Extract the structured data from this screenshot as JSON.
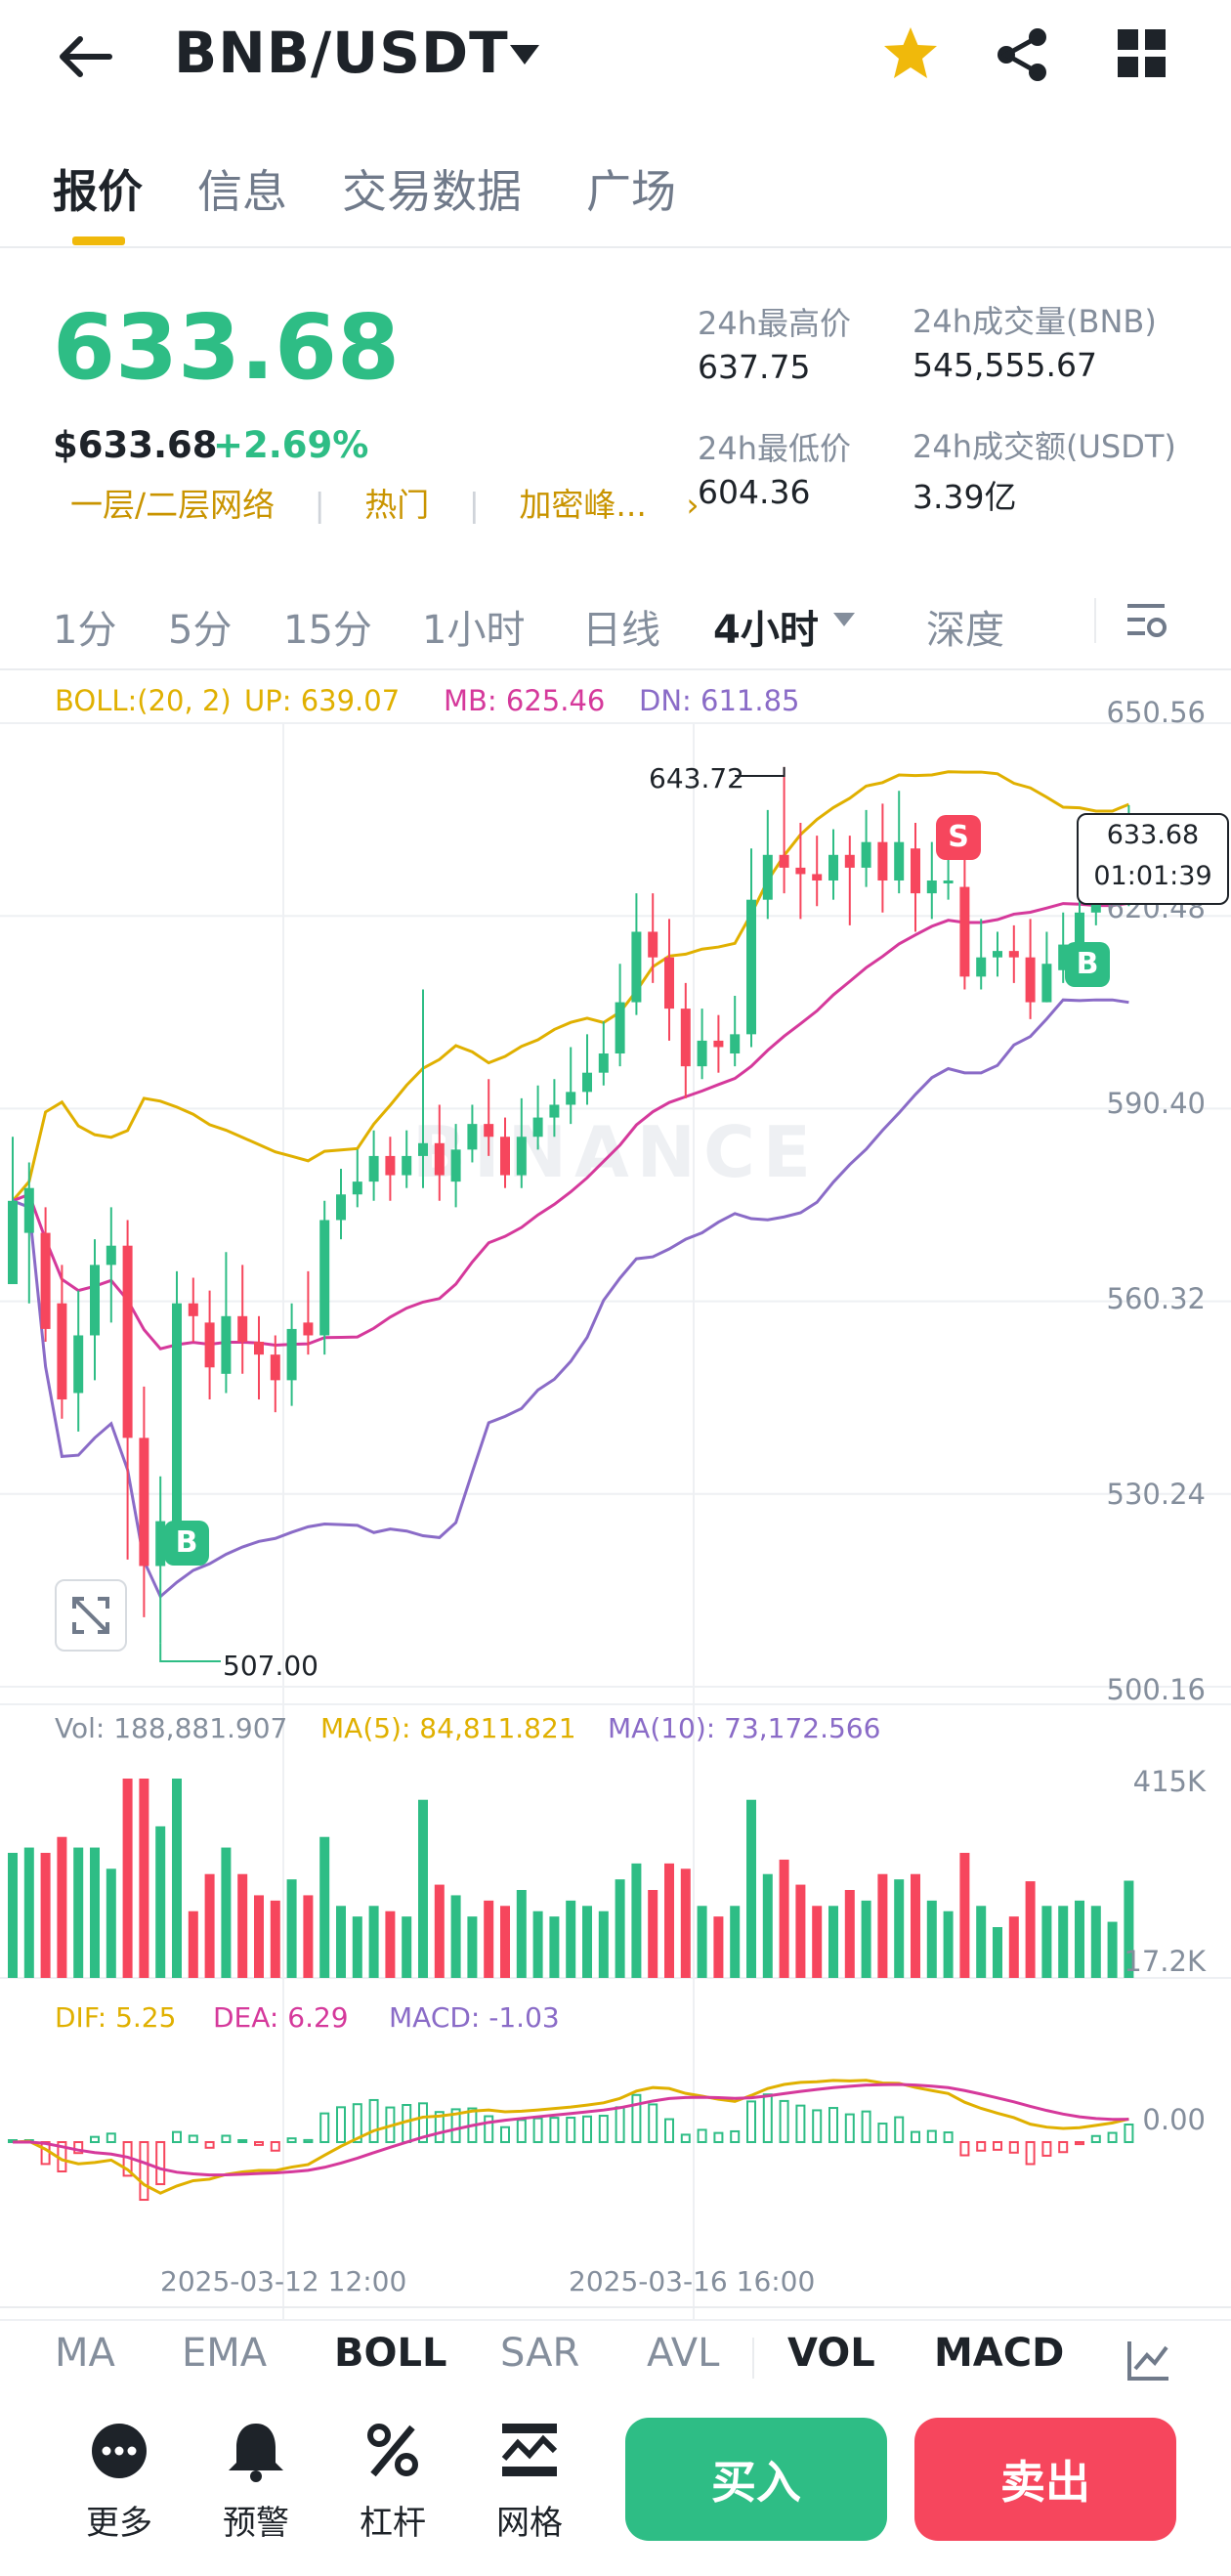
{
  "header": {
    "pair": "BNB/USDT",
    "icons": [
      "back-arrow-icon",
      "caret-down-icon",
      "star-icon",
      "share-icon",
      "grid-icon"
    ],
    "colors": {
      "star": "#f0b90b",
      "up": "#2ebd85",
      "down": "#f6465d",
      "accent": "#f0b90b"
    }
  },
  "tabs": [
    {
      "label": "报价",
      "active": true
    },
    {
      "label": "信息",
      "active": false
    },
    {
      "label": "交易数据",
      "active": false
    },
    {
      "label": "广场",
      "active": false
    }
  ],
  "price": {
    "last": "633.68",
    "usd": "$633.68",
    "change": "+2.69%",
    "tags": [
      "一层/二层网络",
      "热门",
      "加密峰..."
    ]
  },
  "stats": {
    "high_label": "24h最高价",
    "high": "637.75",
    "low_label": "24h最低价",
    "low": "604.36",
    "vol_label": "24h成交量(BNB)",
    "vol": "545,555.67",
    "amt_label": "24h成交额(USDT)",
    "amt": "3.39亿"
  },
  "timeframes": [
    {
      "label": "1分",
      "active": false
    },
    {
      "label": "5分",
      "active": false
    },
    {
      "label": "15分",
      "active": false
    },
    {
      "label": "1小时",
      "active": false
    },
    {
      "label": "日线",
      "active": false
    },
    {
      "label": "4小时",
      "active": true
    },
    {
      "label": "深度",
      "active": false
    }
  ],
  "boll": {
    "label": "BOLL:(20, 2)",
    "up": "UP: 639.07",
    "mb": "MB: 625.46",
    "dn": "DN: 611.85"
  },
  "price_axis": [
    "650.56",
    "620.48",
    "590.40",
    "560.32",
    "530.24",
    "500.16"
  ],
  "annotations": {
    "high": "643.72",
    "low": "507.00",
    "current": "633.68",
    "countdown": "01:01:39",
    "sell_marker": "S",
    "buy_marker": "B"
  },
  "watermark": "BINANCE",
  "volume": {
    "vol": "Vol: 188,881.907",
    "ma5": "MA(5): 84,811.821",
    "ma10": "MA(10): 73,172.566",
    "axis_top": "415K",
    "axis_bottom": "17.2K"
  },
  "macd": {
    "dif": "DIF: 5.25",
    "dea": "DEA: 6.29",
    "macd": "MACD: -1.03",
    "zero": "0.00"
  },
  "time_axis": [
    "2025-03-12 12:00",
    "2025-03-16 16:00"
  ],
  "indicators": [
    {
      "label": "MA",
      "active": false
    },
    {
      "label": "EMA",
      "active": false
    },
    {
      "label": "BOLL",
      "active": true
    },
    {
      "label": "SAR",
      "active": false
    },
    {
      "label": "AVL",
      "active": false
    },
    {
      "label": "VOL",
      "active": true
    },
    {
      "label": "MACD",
      "active": true
    }
  ],
  "bottom": {
    "more": "更多",
    "alert": "预警",
    "leverage": "杠杆",
    "grid": "网格",
    "buy": "买入",
    "sell": "卖出"
  },
  "chart_data": {
    "type": "candlestick",
    "interval": "4小时",
    "candles": [
      [
        563,
        576,
        586,
        565
      ],
      [
        571,
        578,
        582,
        560
      ],
      [
        571,
        556,
        575,
        554
      ],
      [
        560,
        545,
        566,
        542
      ],
      [
        546,
        555,
        562,
        540
      ],
      [
        555,
        566,
        570,
        548
      ],
      [
        566,
        569,
        575,
        557
      ],
      [
        569,
        539,
        573,
        520
      ],
      [
        539,
        519,
        547,
        511
      ],
      [
        519,
        526,
        533,
        507
      ],
      [
        526,
        560,
        565,
        524
      ],
      [
        560,
        558,
        564,
        554
      ],
      [
        557,
        550,
        562,
        545
      ],
      [
        549,
        558,
        568,
        546
      ],
      [
        558,
        554,
        566,
        549
      ],
      [
        554,
        552,
        558,
        545
      ],
      [
        552,
        548,
        555,
        543
      ],
      [
        548,
        556,
        560,
        544
      ],
      [
        557,
        555,
        565,
        552
      ],
      [
        555,
        573,
        576,
        552
      ],
      [
        573,
        577,
        581,
        570
      ],
      [
        577,
        579,
        584,
        575
      ],
      [
        579,
        583,
        587,
        576
      ],
      [
        583,
        580,
        586,
        576
      ],
      [
        580,
        583,
        587,
        578
      ],
      [
        583,
        585,
        609,
        578
      ],
      [
        585,
        580,
        591,
        576
      ],
      [
        579,
        584,
        588,
        575
      ],
      [
        584,
        588,
        591,
        582
      ],
      [
        588,
        586,
        595,
        583
      ],
      [
        586,
        580,
        589,
        578
      ],
      [
        580,
        586,
        592,
        578
      ],
      [
        586,
        589,
        594,
        584
      ],
      [
        589,
        591,
        595,
        586
      ],
      [
        591,
        593,
        600,
        588
      ],
      [
        593,
        596,
        602,
        591
      ],
      [
        596,
        599,
        604,
        594
      ],
      [
        599,
        607,
        613,
        597
      ],
      [
        607,
        618,
        624,
        605
      ],
      [
        618,
        614,
        624,
        610
      ],
      [
        614,
        606,
        620,
        601
      ],
      [
        606,
        597,
        610,
        592
      ],
      [
        597,
        601,
        606,
        595
      ],
      [
        601,
        600,
        605,
        596
      ],
      [
        599,
        602,
        608,
        597
      ],
      [
        602,
        623,
        631,
        600
      ],
      [
        623,
        630,
        637,
        620
      ],
      [
        630,
        628,
        643.72,
        624
      ],
      [
        628,
        627,
        635,
        620
      ],
      [
        627,
        626,
        633,
        622
      ],
      [
        626,
        630,
        634,
        623
      ],
      [
        630,
        628,
        633,
        619
      ],
      [
        628,
        632,
        637,
        625
      ],
      [
        632,
        626,
        638,
        621
      ],
      [
        626,
        632,
        640,
        624
      ],
      [
        631,
        624,
        635,
        618
      ],
      [
        624,
        626,
        632,
        620
      ],
      [
        626,
        626,
        633,
        623
      ],
      [
        625,
        611,
        630,
        609
      ],
      [
        611,
        614,
        620,
        609
      ],
      [
        614,
        615,
        618,
        611
      ],
      [
        615,
        614,
        619,
        610
      ],
      [
        614,
        607,
        620,
        604.36
      ],
      [
        607,
        613,
        618,
        607
      ],
      [
        612,
        616,
        621,
        610
      ],
      [
        616,
        621,
        626,
        614
      ],
      [
        621,
        626,
        630,
        619
      ],
      [
        626,
        628,
        632,
        624
      ],
      [
        627,
        633.68,
        637.75,
        622
      ]
    ],
    "y_range": [
      500.16,
      650.56
    ]
  }
}
